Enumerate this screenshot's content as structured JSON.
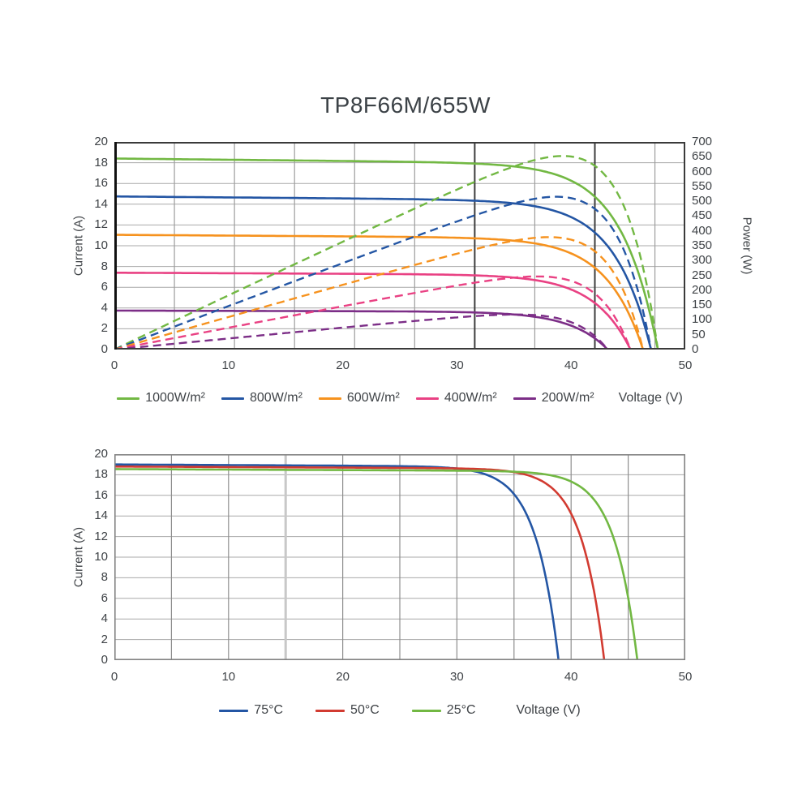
{
  "page": {
    "title": "TP8F66M/655W"
  },
  "colors": {
    "text": "#3f4347",
    "grid_h": "#a9a9a9",
    "grid_v_top": "#9d9d9d",
    "grid_v_dark": "#3d3d3d",
    "grid_v_bottom": "#8e8e8e",
    "grid_v_accent": "#c8c8c8",
    "border_top_chart": "#3a3a3a",
    "border_left_accent": "#111111",
    "border_bottom_chart": "#828282"
  },
  "chart_data": [
    {
      "id": "irradiance-iv-power-curves",
      "type": "line",
      "xlabel": "Voltage (V)",
      "ylabel": "Current (A)",
      "ylabel_right": "Power (W)",
      "xlim": [
        0,
        50
      ],
      "ylim": [
        0,
        20
      ],
      "ylim_right": [
        0,
        700
      ],
      "x_ticks": [
        0,
        10,
        20,
        30,
        40,
        50
      ],
      "y_ticks": [
        0,
        2,
        4,
        6,
        8,
        10,
        12,
        14,
        16,
        18,
        20
      ],
      "y_ticks_right": [
        0,
        50,
        100,
        150,
        200,
        250,
        300,
        350,
        400,
        450,
        500,
        550,
        600,
        650,
        700
      ],
      "grid": {
        "h_step_a": 2,
        "v_step_v": 5.26,
        "v_dark_indices": [
          6,
          8
        ]
      },
      "legend_position": "bottom",
      "curve_shape": {
        "knee_v": 3.2,
        "droop": 0.03
      },
      "series": [
        {
          "name": "1000W/m²",
          "color": "#72b843",
          "isc_a": 18.4,
          "voc_v": 47.6,
          "vmp_v": 39.5,
          "pmp_w": 655,
          "has_power_curve": true
        },
        {
          "name": "800W/m²",
          "color": "#2456a4",
          "isc_a": 14.75,
          "voc_v": 47.0,
          "vmp_v": 39.0,
          "pmp_w": 524,
          "has_power_curve": true
        },
        {
          "name": "600W/m²",
          "color": "#f6921e",
          "isc_a": 11.05,
          "voc_v": 46.3,
          "vmp_v": 38.6,
          "pmp_w": 393,
          "has_power_curve": true
        },
        {
          "name": "400W/m²",
          "color": "#e94183",
          "isc_a": 7.4,
          "voc_v": 45.2,
          "vmp_v": 38.0,
          "pmp_w": 262,
          "has_power_curve": true
        },
        {
          "name": "200W/m²",
          "color": "#7c2e87",
          "isc_a": 3.75,
          "voc_v": 43.2,
          "vmp_v": 37.0,
          "pmp_w": 131,
          "has_power_curve": true
        }
      ]
    },
    {
      "id": "temperature-iv-curves",
      "type": "line",
      "xlabel": "Voltage (V)",
      "ylabel": "Current (A)",
      "xlim": [
        0,
        50
      ],
      "ylim": [
        0,
        20
      ],
      "x_ticks": [
        0,
        10,
        20,
        30,
        40,
        50
      ],
      "y_ticks": [
        0,
        2,
        4,
        6,
        8,
        10,
        12,
        14,
        16,
        18,
        20
      ],
      "grid": {
        "h_step_a": 2,
        "v_step_v": 5,
        "v_accent_v": 15
      },
      "legend_position": "bottom",
      "curve_shape": {
        "knee_v": 2.0,
        "droop": 0.012
      },
      "series": [
        {
          "name": "75°C",
          "color": "#2456a4",
          "isc_a": 19.0,
          "voc_v": 38.9,
          "has_power_curve": false
        },
        {
          "name": "50°C",
          "color": "#d23b31",
          "isc_a": 18.8,
          "voc_v": 42.9,
          "has_power_curve": false
        },
        {
          "name": "25°C",
          "color": "#72b843",
          "isc_a": 18.55,
          "voc_v": 45.8,
          "has_power_curve": false
        }
      ]
    }
  ]
}
